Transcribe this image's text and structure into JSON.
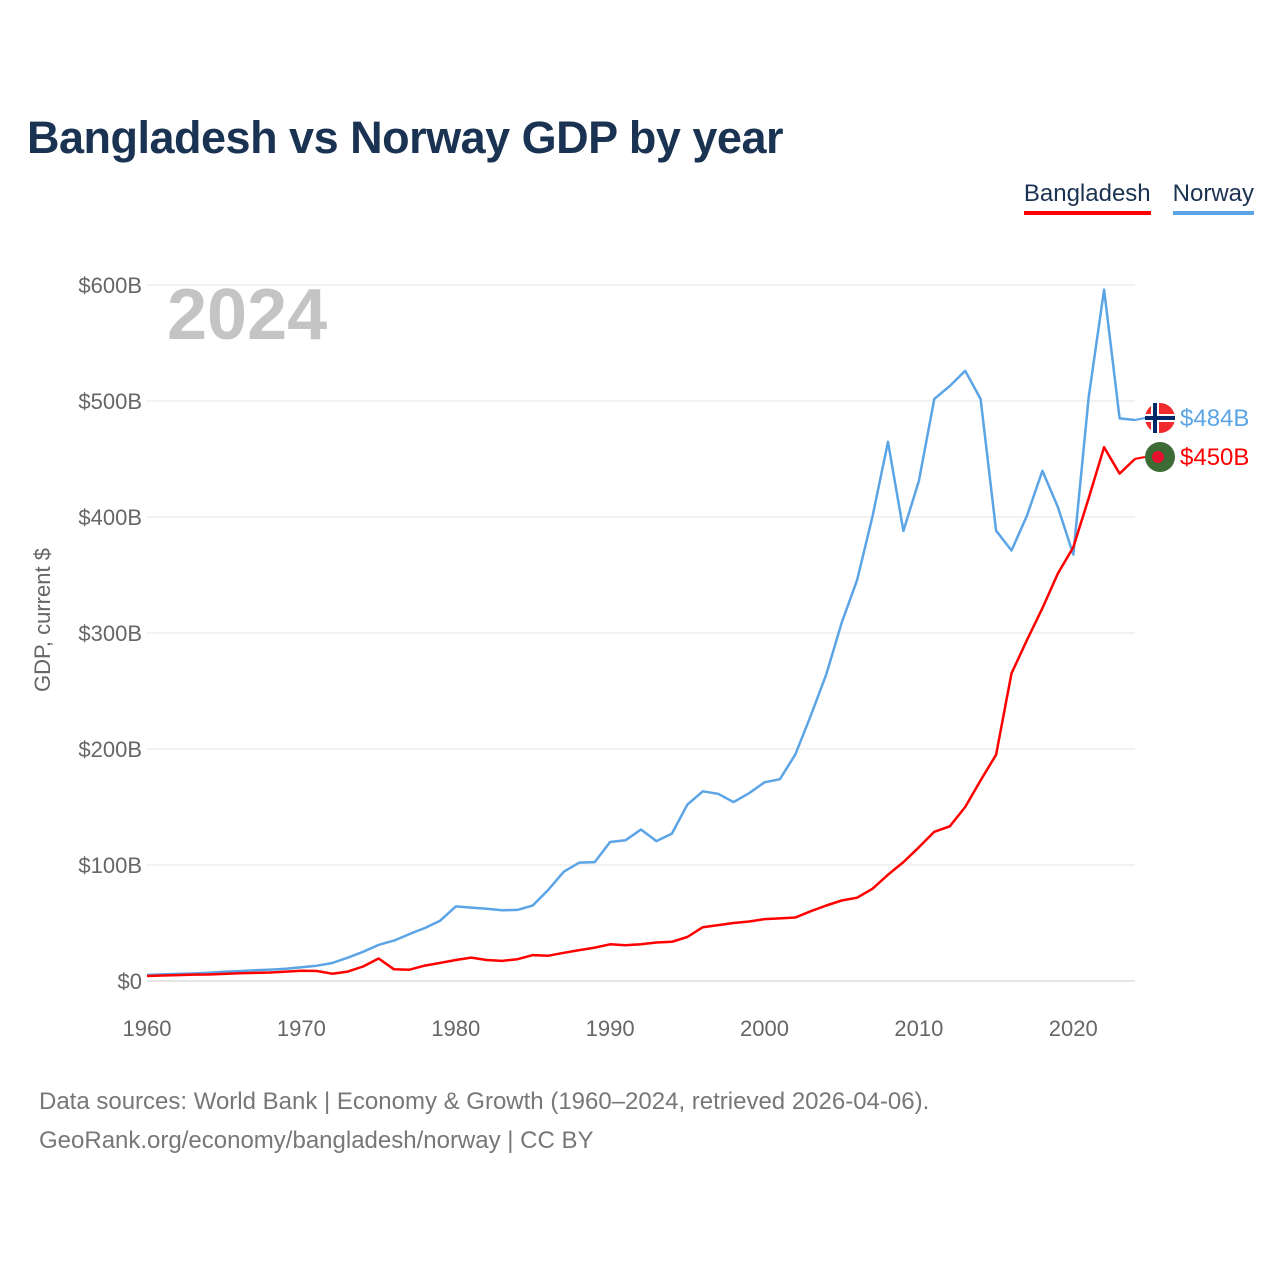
{
  "title": "Bangladesh vs Norway GDP by year",
  "year_label": "2024",
  "footer": {
    "line1": "Data sources: World Bank | Economy & Growth (1960–2024, retrieved 2026-04-06).",
    "line2": "GeoRank.org/economy/bangladesh/norway | CC BY"
  },
  "colors": {
    "bangladesh": "#ff0000",
    "norway": "#5ba4e5"
  },
  "chart_data": {
    "type": "line",
    "title": "Bangladesh vs Norway GDP by year",
    "xlabel": "",
    "ylabel": "GDP, current $",
    "xlim": [
      1960,
      2024
    ],
    "ylim": [
      0,
      600
    ],
    "y_unit": "billion USD",
    "grid": true,
    "legend_position": "top-right",
    "x_ticks": [
      1960,
      1970,
      1980,
      1990,
      2000,
      2010,
      2020
    ],
    "x_tick_labels": [
      "1960",
      "1970",
      "1980",
      "1990",
      "2000",
      "2010",
      "2020"
    ],
    "y_ticks": [
      0,
      100,
      200,
      300,
      400,
      500,
      600
    ],
    "y_tick_labels": [
      "$0",
      "$100B",
      "$200B",
      "$300B",
      "$400B",
      "$500B",
      "$600B"
    ],
    "x": [
      1960,
      1961,
      1962,
      1963,
      1964,
      1965,
      1966,
      1967,
      1968,
      1969,
      1970,
      1971,
      1972,
      1973,
      1974,
      1975,
      1976,
      1977,
      1978,
      1979,
      1980,
      1981,
      1982,
      1983,
      1984,
      1985,
      1986,
      1987,
      1988,
      1989,
      1990,
      1991,
      1992,
      1993,
      1994,
      1995,
      1996,
      1997,
      1998,
      1999,
      2000,
      2001,
      2002,
      2003,
      2004,
      2005,
      2006,
      2007,
      2008,
      2009,
      2010,
      2011,
      2012,
      2013,
      2014,
      2015,
      2016,
      2017,
      2018,
      2019,
      2020,
      2021,
      2022,
      2023,
      2024
    ],
    "series": [
      {
        "name": "Bangladesh",
        "color": "#ff0000",
        "end_label": "$450B",
        "values": [
          4.3,
          4.7,
          5.1,
          5.5,
          5.6,
          6.1,
          6.6,
          7.0,
          7.3,
          8.1,
          8.8,
          8.6,
          6.3,
          8.1,
          12.5,
          19.4,
          10.1,
          9.7,
          13.3,
          15.6,
          18.1,
          20.2,
          18.1,
          17.3,
          18.8,
          22.3,
          21.8,
          24.3,
          26.6,
          28.8,
          31.6,
          30.9,
          31.7,
          33.2,
          33.8,
          37.9,
          46.4,
          48.2,
          50.0,
          51.3,
          53.4,
          54.0,
          54.7,
          60.2,
          65.1,
          69.4,
          71.8,
          79.6,
          91.6,
          102.5,
          115.3,
          128.6,
          133.4,
          150.0,
          172.9,
          195.1,
          265.2,
          293.8,
          321.4,
          351.2,
          373.9,
          416.3,
          460.2,
          437.4,
          450.1
        ]
      },
      {
        "name": "Norway",
        "color": "#5ba4e5",
        "end_label": "$484B",
        "values": [
          5.2,
          5.7,
          6.1,
          6.5,
          7.1,
          7.9,
          8.5,
          9.2,
          9.8,
          10.6,
          11.8,
          13.2,
          15.5,
          20.1,
          25.2,
          31.1,
          34.8,
          40.4,
          45.7,
          52.1,
          64.3,
          63.3,
          62.2,
          61.0,
          61.3,
          65.2,
          78.7,
          94.2,
          102.1,
          102.5,
          119.8,
          121.4,
          130.6,
          120.6,
          127.1,
          152.0,
          163.5,
          161.4,
          154.2,
          161.9,
          171.3,
          174.0,
          195.4,
          228.8,
          264.4,
          308.9,
          345.6,
          400.9,
          464.8,
          387.9,
          431.1,
          501.8,
          512.9,
          526.0,
          501.7,
          388.2,
          371.1,
          401.0,
          439.8,
          408.7,
          367.6,
          503.4,
          596.0,
          485.0,
          483.6
        ]
      }
    ]
  }
}
